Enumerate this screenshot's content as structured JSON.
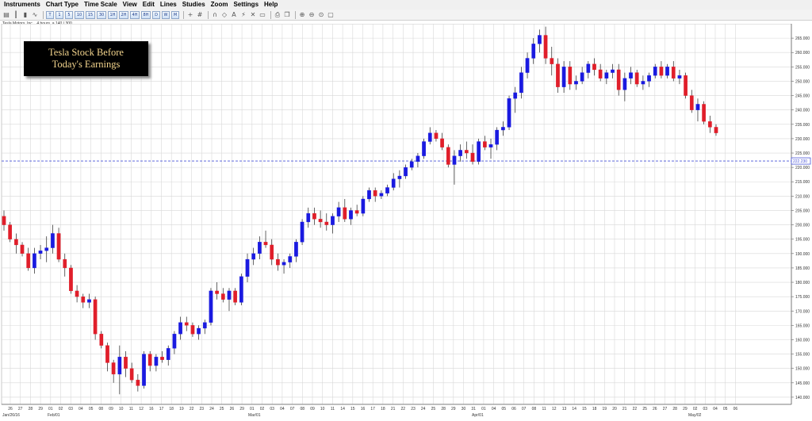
{
  "menu": [
    "Instruments",
    "Chart Type",
    "Time Scale",
    "View",
    "Edit",
    "Lines",
    "Studies",
    "Zoom",
    "Settings",
    "Help"
  ],
  "toolbar": {
    "intervals": [
      "T",
      "1",
      "5",
      "10",
      "15",
      "30",
      "1H",
      "2H",
      "4H",
      "8H",
      "D",
      "W",
      "M"
    ],
    "icons": [
      "chart-style-icon",
      "bar-chart-icon",
      "candle-chart-icon",
      "line-chart-icon",
      "crosshair-icon",
      "grid-icon",
      "magnet-icon",
      "shapes-icon",
      "text-icon",
      "indicator-icon",
      "delete-icon",
      "delete-all-icon",
      "print-icon",
      "copy-icon",
      "zoom-in-icon",
      "zoom-out-icon",
      "zoom-reset-icon",
      "window-icon"
    ]
  },
  "symbol_label": "Tesla Motors, Inc. , 4 hours, a 140 / 300",
  "title": {
    "line1": "Tesla Stock Before",
    "line2": "Today's Earnings"
  },
  "colors": {
    "up": "#1a1ae0",
    "down": "#e01e2a",
    "grid": "#d8d8d8",
    "price_line": "#4a55d8"
  },
  "chart_data": {
    "type": "candlestick",
    "ylim": [
      137.5,
      270
    ],
    "y_ticks": [
      140,
      145,
      150,
      155,
      160,
      165,
      170,
      175,
      180,
      185,
      190,
      195,
      200,
      205,
      210,
      215,
      220,
      225,
      230,
      235,
      240,
      245,
      250,
      255,
      260,
      265
    ],
    "current_price": "222.230",
    "current_price_value": 222.23,
    "x_ticks": [
      "26",
      "27",
      "28",
      "29",
      "01",
      "02",
      "03",
      "04",
      "05",
      "08",
      "09",
      "10",
      "11",
      "12",
      "16",
      "17",
      "18",
      "19",
      "22",
      "23",
      "24",
      "25",
      "26",
      "29",
      "01",
      "02",
      "03",
      "04",
      "07",
      "08",
      "09",
      "10",
      "11",
      "14",
      "15",
      "16",
      "17",
      "18",
      "21",
      "22",
      "23",
      "24",
      "25",
      "28",
      "29",
      "30",
      "31",
      "01",
      "04",
      "05",
      "06",
      "07",
      "08",
      "11",
      "12",
      "13",
      "14",
      "15",
      "18",
      "19",
      "20",
      "21",
      "22",
      "25",
      "26",
      "27",
      "28",
      "29",
      "02",
      "03",
      "04",
      "05",
      "06"
    ],
    "month_labels": [
      "Jan/26/16",
      "Feb/01",
      "Mar/01",
      "Apr/01",
      "May/02"
    ],
    "candles": [
      [
        203,
        205,
        198,
        200
      ],
      [
        200,
        201,
        194,
        195
      ],
      [
        195,
        197,
        190,
        193
      ],
      [
        193,
        194,
        189,
        190
      ],
      [
        190,
        192,
        184,
        185
      ],
      [
        185,
        192,
        183,
        190
      ],
      [
        190,
        193,
        188,
        191
      ],
      [
        191,
        196,
        187,
        192
      ],
      [
        192,
        200,
        190,
        197
      ],
      [
        197,
        199,
        187,
        188
      ],
      [
        188,
        190,
        182,
        185
      ],
      [
        185,
        186,
        176,
        177
      ],
      [
        177,
        179,
        173,
        175
      ],
      [
        175,
        176,
        171,
        173
      ],
      [
        173,
        176,
        171,
        174
      ],
      [
        174,
        175,
        160,
        162
      ],
      [
        162,
        163,
        157,
        158
      ],
      [
        158,
        159,
        149,
        152
      ],
      [
        152,
        153,
        145,
        148
      ],
      [
        148,
        158,
        141,
        154
      ],
      [
        154,
        156,
        147,
        150
      ],
      [
        150,
        152,
        145,
        146
      ],
      [
        146,
        148,
        142,
        144
      ],
      [
        144,
        156,
        143,
        155
      ],
      [
        155,
        156,
        149,
        151
      ],
      [
        151,
        155,
        149,
        154
      ],
      [
        154,
        156,
        152,
        153
      ],
      [
        153,
        158,
        151,
        157
      ],
      [
        157,
        163,
        155,
        162
      ],
      [
        162,
        168,
        160,
        166
      ],
      [
        166,
        168,
        163,
        165
      ],
      [
        165,
        166,
        161,
        162
      ],
      [
        162,
        165,
        160,
        164
      ],
      [
        164,
        167,
        162,
        166
      ],
      [
        166,
        178,
        165,
        177
      ],
      [
        177,
        180,
        174,
        176
      ],
      [
        176,
        178,
        173,
        174
      ],
      [
        174,
        178,
        170,
        177
      ],
      [
        177,
        178,
        172,
        173
      ],
      [
        173,
        183,
        172,
        182
      ],
      [
        182,
        190,
        180,
        188
      ],
      [
        188,
        192,
        186,
        190
      ],
      [
        190,
        196,
        188,
        194
      ],
      [
        194,
        198,
        192,
        193
      ],
      [
        193,
        195,
        186,
        188
      ],
      [
        188,
        190,
        184,
        186
      ],
      [
        186,
        188,
        183,
        187
      ],
      [
        187,
        190,
        185,
        189
      ],
      [
        189,
        195,
        187,
        194
      ],
      [
        194,
        202,
        193,
        201
      ],
      [
        201,
        206,
        199,
        204
      ],
      [
        204,
        206,
        200,
        202
      ],
      [
        202,
        205,
        199,
        201
      ],
      [
        201,
        204,
        198,
        200
      ],
      [
        200,
        204,
        197,
        203
      ],
      [
        203,
        208,
        201,
        206
      ],
      [
        206,
        209,
        201,
        202
      ],
      [
        202,
        206,
        200,
        205
      ],
      [
        205,
        207,
        203,
        204
      ],
      [
        204,
        210,
        203,
        209
      ],
      [
        209,
        213,
        208,
        212
      ],
      [
        212,
        213,
        208,
        210
      ],
      [
        210,
        212,
        209,
        211
      ],
      [
        211,
        214,
        210,
        213
      ],
      [
        213,
        218,
        212,
        216
      ],
      [
        216,
        219,
        213,
        217
      ],
      [
        217,
        221,
        216,
        220
      ],
      [
        220,
        223,
        219,
        222
      ],
      [
        222,
        225,
        220,
        224
      ],
      [
        224,
        230,
        223,
        229
      ],
      [
        229,
        234,
        228,
        232
      ],
      [
        232,
        233,
        229,
        230
      ],
      [
        230,
        232,
        226,
        227
      ],
      [
        227,
        228,
        220,
        221
      ],
      [
        221,
        226,
        214,
        224
      ],
      [
        224,
        228,
        222,
        226
      ],
      [
        226,
        229,
        223,
        225
      ],
      [
        225,
        228,
        221,
        222
      ],
      [
        222,
        230,
        221,
        229
      ],
      [
        229,
        231,
        226,
        227
      ],
      [
        227,
        230,
        223,
        228
      ],
      [
        228,
        234,
        226,
        233
      ],
      [
        233,
        236,
        231,
        234
      ],
      [
        234,
        245,
        233,
        244
      ],
      [
        244,
        248,
        239,
        246
      ],
      [
        246,
        255,
        244,
        253
      ],
      [
        253,
        260,
        251,
        258
      ],
      [
        258,
        265,
        256,
        263
      ],
      [
        263,
        268,
        260,
        266
      ],
      [
        266,
        269,
        256,
        258
      ],
      [
        258,
        262,
        252,
        256
      ],
      [
        256,
        258,
        246,
        248
      ],
      [
        248,
        257,
        246,
        255
      ],
      [
        255,
        257,
        247,
        249
      ],
      [
        249,
        252,
        247,
        250
      ],
      [
        250,
        255,
        249,
        253
      ],
      [
        253,
        257,
        251,
        256
      ],
      [
        256,
        258,
        252,
        254
      ],
      [
        254,
        256,
        250,
        251
      ],
      [
        251,
        254,
        249,
        253
      ],
      [
        253,
        256,
        251,
        254
      ],
      [
        254,
        256,
        245,
        247
      ],
      [
        247,
        253,
        243,
        251
      ],
      [
        251,
        255,
        249,
        253
      ],
      [
        253,
        254,
        248,
        249
      ],
      [
        249,
        252,
        247,
        250
      ],
      [
        250,
        253,
        248,
        252
      ],
      [
        252,
        256,
        251,
        255
      ],
      [
        255,
        257,
        251,
        252
      ],
      [
        252,
        256,
        251,
        255
      ],
      [
        255,
        257,
        250,
        251
      ],
      [
        251,
        254,
        249,
        252
      ],
      [
        252,
        253,
        244,
        245
      ],
      [
        245,
        247,
        239,
        240
      ],
      [
        240,
        244,
        236,
        242
      ],
      [
        242,
        243,
        235,
        236
      ],
      [
        236,
        238,
        232,
        234
      ],
      [
        234,
        235,
        231,
        232
      ]
    ]
  }
}
